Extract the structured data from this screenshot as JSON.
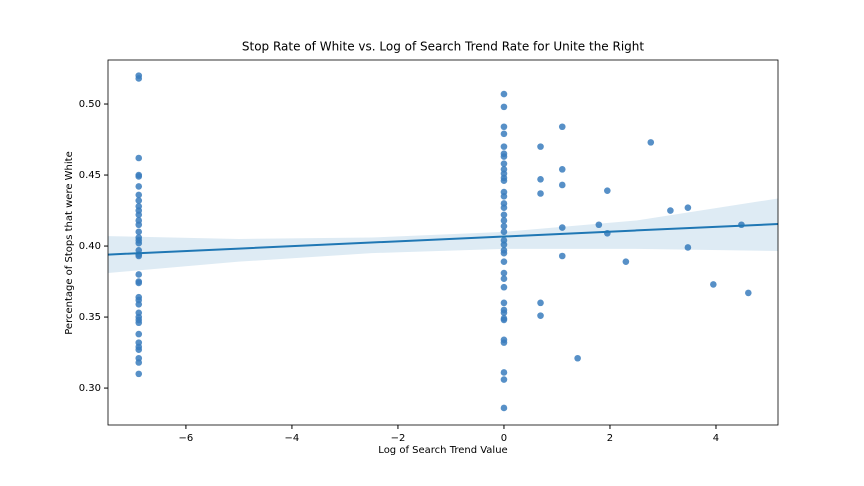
{
  "chart_data": {
    "type": "scatter",
    "title": "Stop Rate of White vs. Log of Search Trend Rate for Unite the Right",
    "x_label": "Log of Search Trend Value",
    "y_label": "Percentage of Stops that were White",
    "xlim": [
      -7.47,
      5.17
    ],
    "ylim": [
      0.274,
      0.531
    ],
    "xticks": [
      {
        "value": -6,
        "label": "−6"
      },
      {
        "value": -4,
        "label": "−4"
      },
      {
        "value": -2,
        "label": "−2"
      },
      0,
      2,
      4
    ],
    "yticks": [
      {
        "value": 0.3,
        "label": "0.30"
      },
      {
        "value": 0.35,
        "label": "0.35"
      },
      {
        "value": 0.4,
        "label": "0.40"
      },
      {
        "value": 0.45,
        "label": "0.45"
      },
      {
        "value": 0.5,
        "label": "0.50"
      }
    ],
    "color": "#3a7dbd",
    "x": [
      -6.89,
      -6.89,
      -6.89,
      -6.89,
      -6.89,
      -6.89,
      -6.89,
      -6.89,
      -6.89,
      -6.89,
      -6.89,
      -6.89,
      -6.89,
      -6.89,
      -6.89,
      -6.89,
      -6.89,
      -6.89,
      -6.89,
      -6.89,
      -6.89,
      -6.89,
      -6.89,
      -6.89,
      -6.89,
      -6.89,
      -6.89,
      -6.89,
      -6.89,
      -6.89,
      -6.89,
      -6.89,
      -6.89,
      -6.89,
      -6.89,
      -6.89,
      -6.89,
      0,
      0,
      0,
      0,
      0,
      0,
      0,
      0,
      0,
      0,
      0,
      0,
      0,
      0,
      0,
      0,
      0,
      0,
      0,
      0,
      0,
      0,
      0,
      0,
      0,
      0,
      0,
      0,
      0,
      0,
      0,
      0,
      0,
      0,
      0,
      0,
      0,
      0,
      0.69,
      0.69,
      0.69,
      0.69,
      0.69,
      1.1,
      1.1,
      1.1,
      1.1,
      1.1,
      1.39,
      1.79,
      1.95,
      1.95,
      2.3,
      2.77,
      3.14,
      3.47,
      3.47,
      3.95,
      4.48,
      4.61
    ],
    "values": [
      0.52,
      0.518,
      0.462,
      0.45,
      0.449,
      0.442,
      0.436,
      0.432,
      0.428,
      0.425,
      0.422,
      0.418,
      0.415,
      0.41,
      0.406,
      0.404,
      0.402,
      0.397,
      0.394,
      0.393,
      0.38,
      0.375,
      0.374,
      0.364,
      0.362,
      0.359,
      0.353,
      0.35,
      0.348,
      0.346,
      0.338,
      0.332,
      0.329,
      0.327,
      0.321,
      0.318,
      0.31,
      0.507,
      0.498,
      0.484,
      0.479,
      0.47,
      0.465,
      0.463,
      0.458,
      0.454,
      0.451,
      0.448,
      0.446,
      0.438,
      0.435,
      0.43,
      0.427,
      0.422,
      0.418,
      0.414,
      0.41,
      0.404,
      0.401,
      0.397,
      0.395,
      0.389,
      0.381,
      0.377,
      0.371,
      0.36,
      0.355,
      0.353,
      0.349,
      0.348,
      0.334,
      0.332,
      0.311,
      0.306,
      0.286,
      0.47,
      0.447,
      0.437,
      0.36,
      0.351,
      0.484,
      0.454,
      0.443,
      0.413,
      0.393,
      0.321,
      0.415,
      0.439,
      0.409,
      0.389,
      0.473,
      0.425,
      0.427,
      0.399,
      0.373,
      0.415,
      0.367
    ],
    "regression": {
      "color": "#1f77b4",
      "x": [
        -7.47,
        -5,
        -2.5,
        0,
        2.5,
        5.17
      ],
      "y": [
        0.394,
        0.3982,
        0.4025,
        0.4067,
        0.411,
        0.4155
      ],
      "lower": [
        0.381,
        0.389,
        0.395,
        0.398,
        0.398,
        0.3965
      ],
      "upper": [
        0.407,
        0.405,
        0.406,
        0.41,
        0.418,
        0.4335
      ]
    }
  }
}
